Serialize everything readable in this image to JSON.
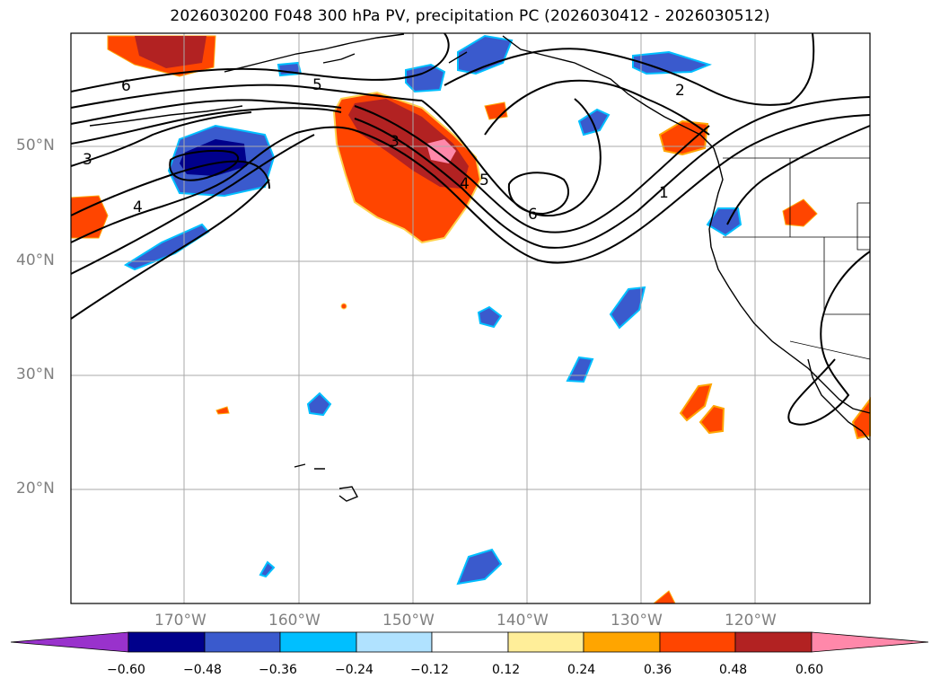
{
  "map": {
    "title": "2026030200 F048 300 hPa PV, precipitation PC (2026030412 - 2026030512)",
    "lat_labels": [
      "50°N",
      "40°N",
      "30°N",
      "20°N"
    ],
    "lon_labels": [
      "170°W",
      "160°W",
      "150°W",
      "140°W",
      "130°W",
      "120°W"
    ],
    "contour_labels": [
      "6",
      "5",
      "3",
      "4",
      "3",
      "4",
      "5",
      "6",
      "2",
      "1"
    ],
    "colorbar": {
      "ticks": [
        "−0.60",
        "−0.48",
        "−0.36",
        "−0.24",
        "−0.12",
        "0.12",
        "0.24",
        "0.36",
        "0.48",
        "0.60"
      ],
      "colors": [
        "#9932cc",
        "#00008b",
        "#3a5acd",
        "#00bfff",
        "#b0e2ff",
        "#ffffff",
        "#ffee99",
        "#ffa500",
        "#ff4500",
        "#b22222",
        "#ff88aa"
      ]
    }
  }
}
